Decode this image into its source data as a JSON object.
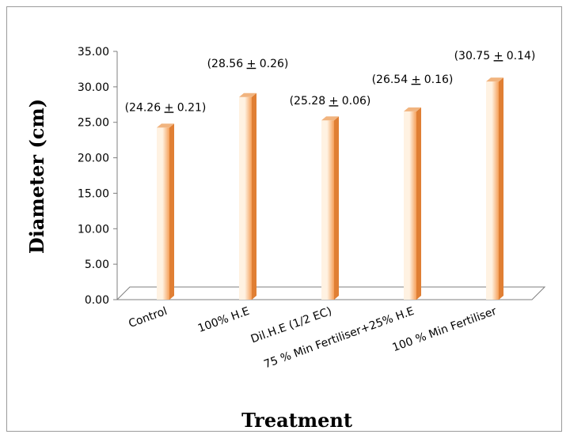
{
  "chart_data": {
    "type": "bar",
    "title": "",
    "xlabel": "Treatment",
    "ylabel": "Diameter (cm)",
    "categories": [
      "Control",
      "100% H.E",
      "Dil.H.E (1/2 EC)",
      "75 % Min Fertiliser+25% H.E",
      "100 % Min Fertiliser"
    ],
    "values": [
      24.26,
      28.56,
      25.28,
      26.54,
      30.75
    ],
    "errors": [
      0.21,
      0.26,
      0.06,
      0.16,
      0.14
    ],
    "data_labels": [
      {
        "pre": "(24.26 ",
        "pm": "+",
        "post": " 0.21)"
      },
      {
        "pre": "(28.56 ",
        "pm": "+",
        "post": " 0.26)"
      },
      {
        "pre": "(25.28 ",
        "pm": "+",
        "post": " 0.06)"
      },
      {
        "pre": "(26.54 ",
        "pm": "+",
        "post": " 0.16)"
      },
      {
        "pre": "(30.75 ",
        "pm": "+",
        "post": " 0.14)"
      }
    ],
    "y_ticks": [
      "0.00",
      "5.00",
      "10.00",
      "15.00",
      "20.00",
      "25.00",
      "30.00",
      "35.00"
    ],
    "ylim": [
      0,
      35
    ],
    "grid": false,
    "legend": "none",
    "bar_color": "#f5a05a",
    "bar_highlight": "#fff2e2"
  }
}
